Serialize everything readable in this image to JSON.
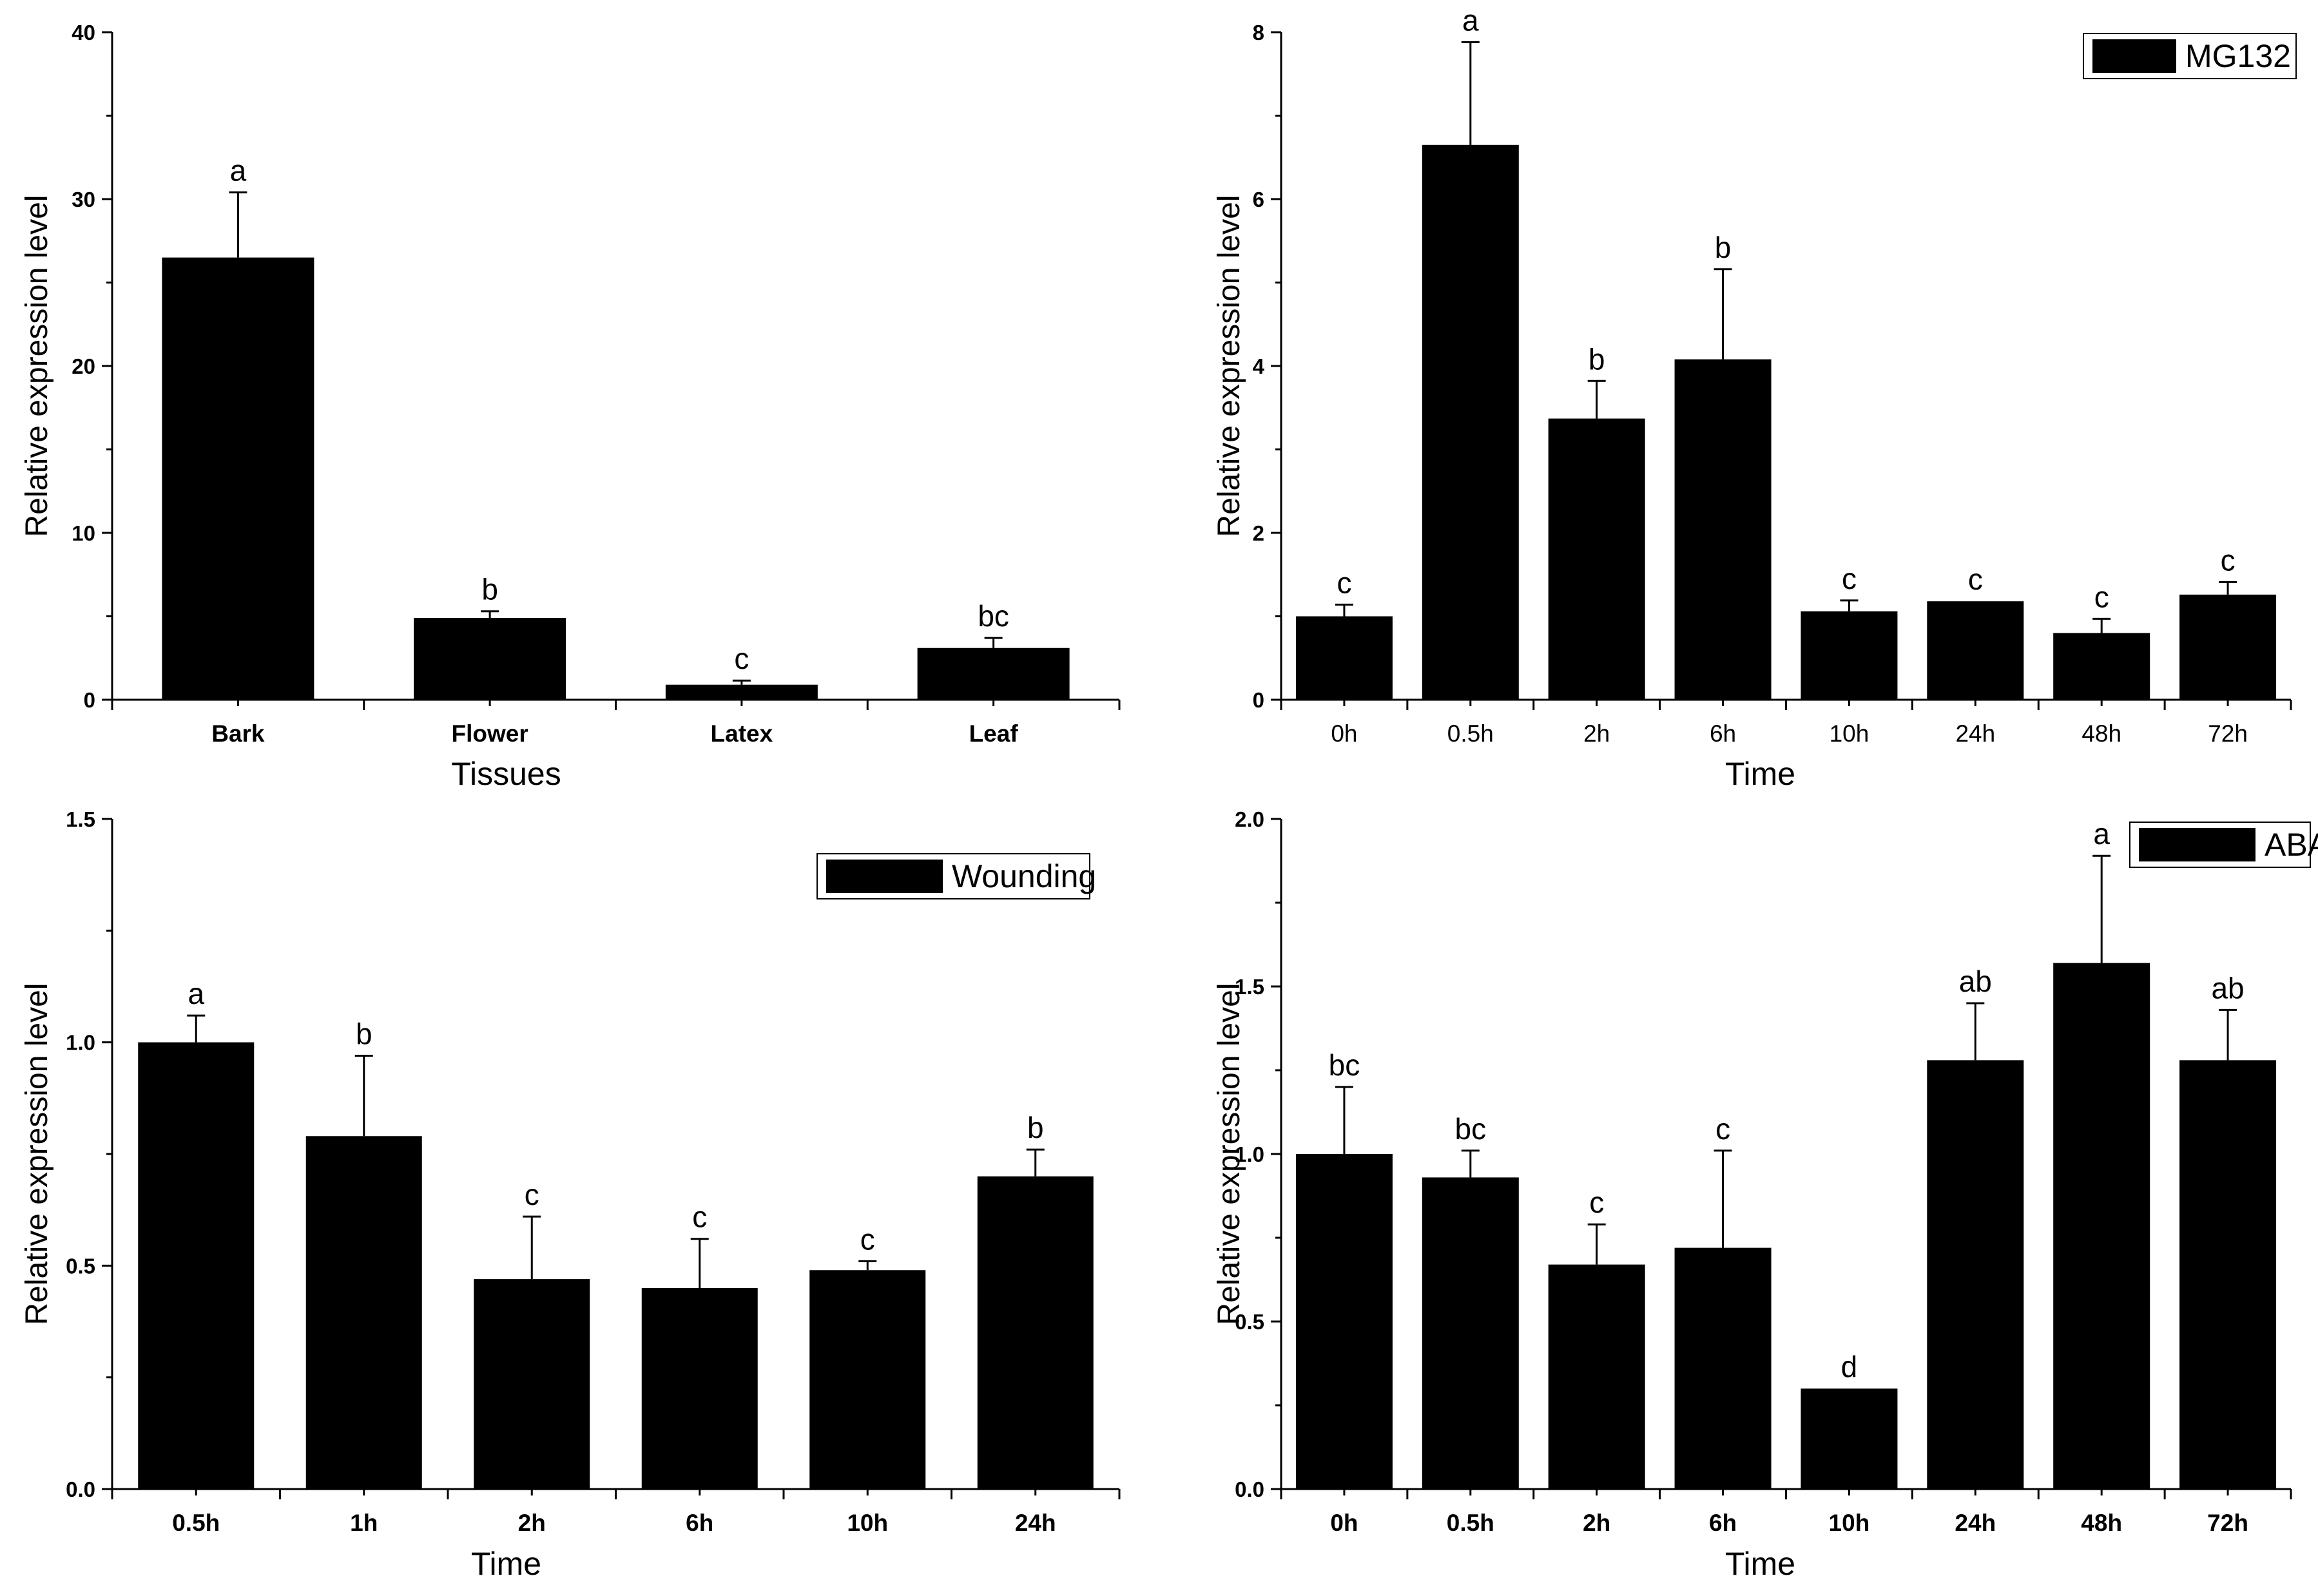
{
  "figure": {
    "background": "#ffffff",
    "bar_color": "#000000"
  },
  "chart_data": [
    {
      "id": "tissues",
      "type": "bar",
      "title": "",
      "xlabel": "Tissues",
      "ylabel": "Relative expression level",
      "ylim": [
        0,
        40
      ],
      "yticks": [
        0,
        10,
        20,
        30,
        40
      ],
      "categories": [
        "Bark",
        "Flower",
        "Latex",
        "Leaf"
      ],
      "values": [
        26.5,
        4.9,
        0.9,
        3.1
      ],
      "errors": [
        3.9,
        0.4,
        0.25,
        0.6
      ],
      "significance": [
        "a",
        "b",
        "c",
        "bc"
      ],
      "legend": null
    },
    {
      "id": "mg132",
      "type": "bar",
      "title": "",
      "xlabel": "Time",
      "ylabel": "Relative expression level",
      "ylim": [
        0,
        8
      ],
      "yticks": [
        0,
        2,
        4,
        6,
        8
      ],
      "categories": [
        "0h",
        "0.5h",
        "2h",
        "6h",
        "10h",
        "24h",
        "48h",
        "72h"
      ],
      "values": [
        1.0,
        6.65,
        3.37,
        4.08,
        1.06,
        1.18,
        0.8,
        1.26
      ],
      "errors": [
        0.14,
        1.23,
        0.45,
        1.08,
        0.13,
        0.0,
        0.17,
        0.15
      ],
      "significance": [
        "c",
        "a",
        "b",
        "b",
        "c",
        "c",
        "c",
        "c"
      ],
      "legend": "MG132"
    },
    {
      "id": "wounding",
      "type": "bar",
      "title": "",
      "xlabel": "Time",
      "ylabel": "Relative expression level",
      "ylim": [
        0,
        1.5
      ],
      "yticks": [
        "0.0",
        "0.5",
        "1.0",
        "1.5"
      ],
      "categories": [
        "0.5h",
        "1h",
        "2h",
        "6h",
        "10h",
        "24h"
      ],
      "values": [
        1.0,
        0.79,
        0.47,
        0.45,
        0.49,
        0.7
      ],
      "errors": [
        0.06,
        0.18,
        0.14,
        0.11,
        0.02,
        0.06
      ],
      "significance": [
        "a",
        "b",
        "c",
        "c",
        "c",
        "b"
      ],
      "legend": "Wounding"
    },
    {
      "id": "aba",
      "type": "bar",
      "title": "",
      "xlabel": "Time",
      "ylabel": "Relative expression level",
      "ylim": [
        0,
        2.0
      ],
      "yticks": [
        "0.0",
        "0.5",
        "1.0",
        "1.5",
        "2.0"
      ],
      "categories": [
        "0h",
        "0.5h",
        "2h",
        "6h",
        "10h",
        "24h",
        "48h",
        "72h"
      ],
      "values": [
        1.0,
        0.93,
        0.67,
        0.72,
        0.3,
        1.28,
        1.57,
        1.28
      ],
      "errors": [
        0.2,
        0.08,
        0.12,
        0.29,
        0.0,
        0.17,
        0.32,
        0.15
      ],
      "significance": [
        "bc",
        "bc",
        "c",
        "c",
        "d",
        "ab",
        "a",
        "ab"
      ],
      "legend": "ABA"
    }
  ]
}
